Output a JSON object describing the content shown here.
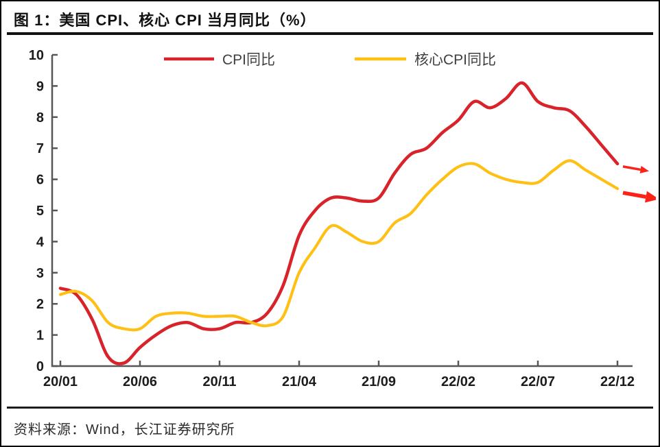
{
  "figure": {
    "title": "图 1：美国 CPI、核心 CPI 当月同比（%）",
    "source": "资料来源：Wind，长江证券研究所"
  },
  "style": {
    "cpi_color": "#d9232b",
    "core_color": "#ffc016",
    "arrow_color": "#fb2318",
    "axis_color": "#555759",
    "tick_label_color": "#1c1c1e"
  },
  "chart_data": {
    "type": "line",
    "title": "",
    "xlabel": "",
    "ylabel": "",
    "ylim": [
      0,
      10
    ],
    "yticks": [
      0,
      1,
      2,
      3,
      4,
      5,
      6,
      7,
      8,
      9,
      10
    ],
    "grid": false,
    "legend_position": "top",
    "x": [
      "20/01",
      "20/02",
      "20/03",
      "20/04",
      "20/05",
      "20/06",
      "20/07",
      "20/08",
      "20/09",
      "20/10",
      "20/11",
      "20/12",
      "21/01",
      "21/02",
      "21/03",
      "21/04",
      "21/05",
      "21/06",
      "21/07",
      "21/08",
      "21/09",
      "21/10",
      "21/11",
      "21/12",
      "22/01",
      "22/02",
      "22/03",
      "22/04",
      "22/05",
      "22/06",
      "22/07",
      "22/08",
      "22/09",
      "22/10",
      "22/11",
      "22/12"
    ],
    "x_tick_labels": [
      "20/01",
      "20/06",
      "20/11",
      "21/04",
      "21/09",
      "22/02",
      "22/07",
      "22/12"
    ],
    "x_tick_indices": [
      0,
      5,
      10,
      15,
      20,
      25,
      30,
      35
    ],
    "series": [
      {
        "name": "CPI同比",
        "color": "#d9232b",
        "values": [
          2.5,
          2.3,
          1.5,
          0.3,
          0.1,
          0.6,
          1.0,
          1.3,
          1.4,
          1.2,
          1.2,
          1.4,
          1.4,
          1.7,
          2.6,
          4.2,
          5.0,
          5.4,
          5.4,
          5.3,
          5.4,
          6.2,
          6.8,
          7.0,
          7.5,
          7.9,
          8.5,
          8.3,
          8.6,
          9.1,
          8.5,
          8.3,
          8.2,
          7.7,
          7.1,
          6.5
        ]
      },
      {
        "name": "核心CPI同比",
        "color": "#ffc016",
        "values": [
          2.3,
          2.4,
          2.1,
          1.4,
          1.2,
          1.2,
          1.6,
          1.7,
          1.7,
          1.6,
          1.6,
          1.6,
          1.4,
          1.3,
          1.6,
          3.0,
          3.8,
          4.5,
          4.3,
          4.0,
          4.0,
          4.6,
          4.9,
          5.5,
          6.0,
          6.4,
          6.5,
          6.2,
          6.0,
          5.9,
          5.9,
          6.3,
          6.6,
          6.3,
          6.0,
          5.7
        ]
      }
    ],
    "annotations": [
      {
        "type": "arrow",
        "series": "CPI同比",
        "position": "line-end",
        "direction": "right-down",
        "size": "small",
        "color": "#fb2318"
      },
      {
        "type": "arrow",
        "series": "核心CPI同比",
        "position": "line-end",
        "direction": "right-down",
        "size": "large",
        "color": "#fb2318"
      }
    ]
  }
}
